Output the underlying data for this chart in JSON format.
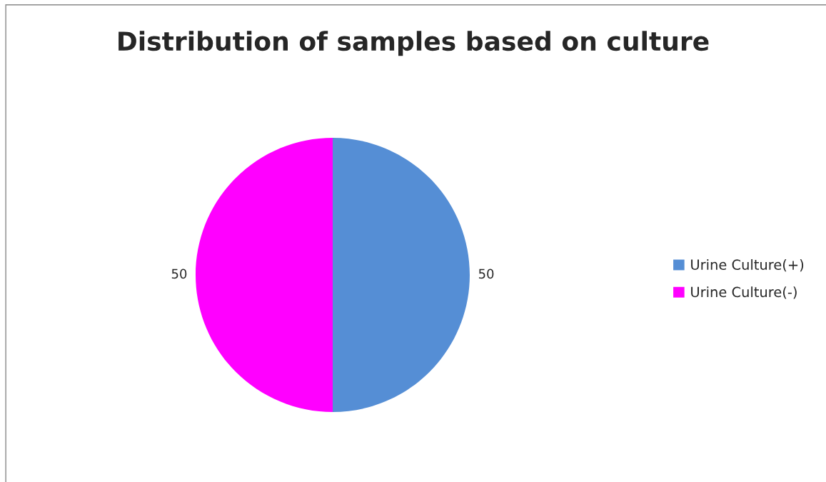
{
  "chart_data": {
    "type": "pie",
    "title": "Distribution of samples based on culture",
    "categories": [
      "Urine Culture(+)",
      "Urine Culture(-)"
    ],
    "values": [
      50,
      50
    ],
    "colors": [
      "#558ed5",
      "#ff00ff"
    ],
    "data_labels": true,
    "legend": "right"
  }
}
